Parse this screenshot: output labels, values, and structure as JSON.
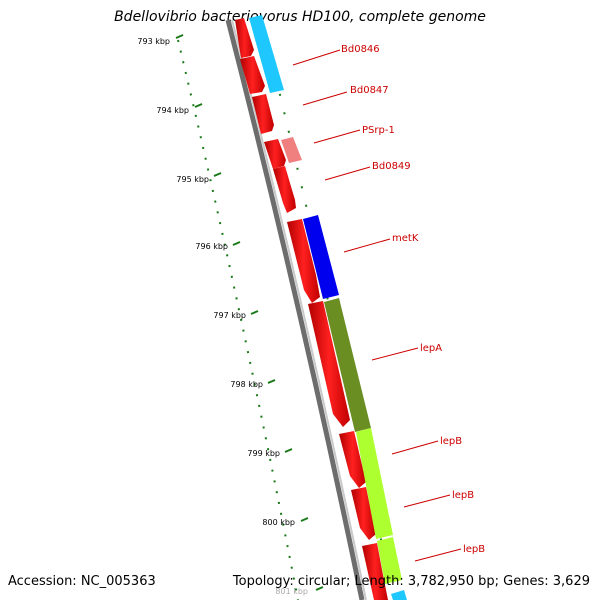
{
  "title": "Bdellovibrio bacteriovorus HD100, complete genome",
  "footer": {
    "accession": "Accession: NC_005363",
    "summary": "Topology: circular; Length: 3,782,950 bp; Genes: 3,629"
  },
  "scale_ticks": [
    "793 kbp",
    "794 kbp",
    "795 kbp",
    "796 kbp",
    "797 kbp",
    "798 kbp",
    "799 kbp",
    "800 kbp",
    "801 kbp"
  ],
  "gene_labels": [
    "Bd0846",
    "Bd0847",
    "PSrp-1",
    "Bd0849",
    "metK",
    "lepA",
    "lepB",
    "lepB",
    "lepB"
  ],
  "colors": {
    "cds": "#ff0000",
    "cyan_feature": "#1ec8ff",
    "pink_feature": "#f08080",
    "blue_feature": "#0000ee",
    "olive_feature": "#6b8e23",
    "lime_feature": "#adff2f",
    "backbone": "#8c8c8c",
    "tick": "#1a7a1a",
    "label": "#cc0000"
  }
}
